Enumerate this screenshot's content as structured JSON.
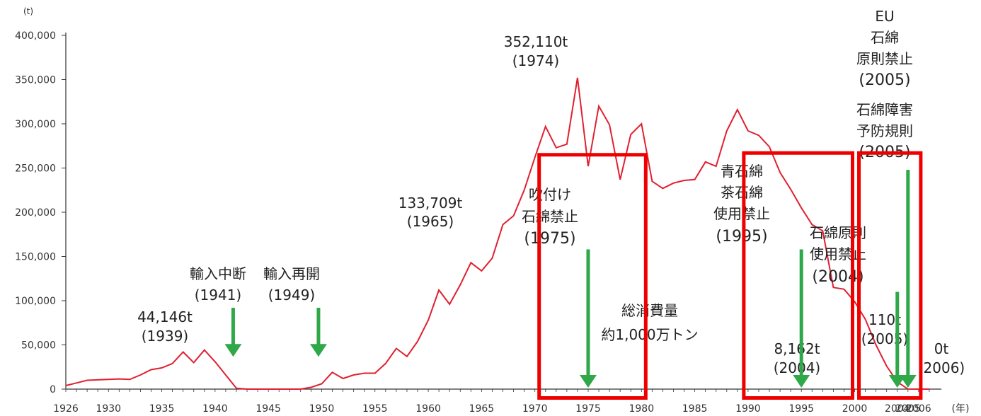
{
  "colors": {
    "line": "#e02030",
    "arrow": "#2fa84a",
    "box": "#ee0000",
    "axis": "#333333"
  },
  "chart_data": {
    "type": "line",
    "title": "",
    "xlabel": "(年)",
    "ylabel": "(t)",
    "xlim": [
      1926,
      2008
    ],
    "ylim": [
      0,
      400000
    ],
    "grid": false,
    "xticks": [
      {
        "value": 1926,
        "label": "1926"
      },
      {
        "value": 1930,
        "label": "1930"
      },
      {
        "value": 1935,
        "label": "1935"
      },
      {
        "value": 1940,
        "label": "1940"
      },
      {
        "value": 1945,
        "label": "1945"
      },
      {
        "value": 1950,
        "label": "1950"
      },
      {
        "value": 1955,
        "label": "1955"
      },
      {
        "value": 1960,
        "label": "1960"
      },
      {
        "value": 1965,
        "label": "1965"
      },
      {
        "value": 1970,
        "label": "1970"
      },
      {
        "value": 1975,
        "label": "1975"
      },
      {
        "value": 1980,
        "label": "1980"
      },
      {
        "value": 1985,
        "label": "1985"
      },
      {
        "value": 1990,
        "label": "1990"
      },
      {
        "value": 1995,
        "label": "1995"
      },
      {
        "value": 2000,
        "label": "2000"
      },
      {
        "value": 2004,
        "label": "2004"
      },
      {
        "value": 2005,
        "label": "2005"
      },
      {
        "value": 2006,
        "label": "2006"
      }
    ],
    "yticks": [
      {
        "value": 0,
        "label": "0"
      },
      {
        "value": 50000,
        "label": "50,000"
      },
      {
        "value": 100000,
        "label": "100,000"
      },
      {
        "value": 150000,
        "label": "150,000"
      },
      {
        "value": 200000,
        "label": "200,000"
      },
      {
        "value": 250000,
        "label": "250,000"
      },
      {
        "value": 300000,
        "label": "300,000"
      },
      {
        "value": 350000,
        "label": "350,000"
      },
      {
        "value": 400000,
        "label": "400,000"
      }
    ],
    "series": [
      {
        "points": [
          [
            1926,
            4000
          ],
          [
            1927,
            7000
          ],
          [
            1928,
            10000
          ],
          [
            1929,
            10500
          ],
          [
            1930,
            11000
          ],
          [
            1931,
            11500
          ],
          [
            1932,
            11000
          ],
          [
            1933,
            16000
          ],
          [
            1934,
            22000
          ],
          [
            1935,
            24000
          ],
          [
            1936,
            29000
          ],
          [
            1937,
            42000
          ],
          [
            1938,
            30000
          ],
          [
            1939,
            44146
          ],
          [
            1940,
            31000
          ],
          [
            1941,
            16000
          ],
          [
            1942,
            1000
          ],
          [
            1943,
            0
          ],
          [
            1948,
            0
          ],
          [
            1949,
            2000
          ],
          [
            1950,
            6000
          ],
          [
            1951,
            19000
          ],
          [
            1952,
            12000
          ],
          [
            1953,
            16000
          ],
          [
            1954,
            18000
          ],
          [
            1955,
            18000
          ],
          [
            1956,
            29000
          ],
          [
            1957,
            46000
          ],
          [
            1958,
            37000
          ],
          [
            1959,
            54000
          ],
          [
            1960,
            78000
          ],
          [
            1961,
            112000
          ],
          [
            1962,
            96000
          ],
          [
            1963,
            118000
          ],
          [
            1964,
            143000
          ],
          [
            1965,
            133709
          ],
          [
            1966,
            148000
          ],
          [
            1967,
            186000
          ],
          [
            1968,
            196000
          ],
          [
            1969,
            225000
          ],
          [
            1970,
            262000
          ],
          [
            1971,
            297000
          ],
          [
            1972,
            273000
          ],
          [
            1973,
            277000
          ],
          [
            1974,
            352110
          ],
          [
            1975,
            252000
          ],
          [
            1976,
            320000
          ],
          [
            1977,
            299000
          ],
          [
            1978,
            237000
          ],
          [
            1979,
            288000
          ],
          [
            1980,
            300000
          ],
          [
            1981,
            235000
          ],
          [
            1982,
            227000
          ],
          [
            1983,
            233000
          ],
          [
            1984,
            236000
          ],
          [
            1985,
            237000
          ],
          [
            1986,
            257000
          ],
          [
            1987,
            252000
          ],
          [
            1988,
            292000
          ],
          [
            1989,
            316000
          ],
          [
            1990,
            292000
          ],
          [
            1991,
            287000
          ],
          [
            1992,
            274000
          ],
          [
            1993,
            245000
          ],
          [
            1994,
            226000
          ],
          [
            1995,
            205000
          ],
          [
            1996,
            186000
          ],
          [
            1997,
            179000
          ],
          [
            1998,
            115000
          ],
          [
            1999,
            113000
          ],
          [
            2000,
            99000
          ],
          [
            2001,
            79000
          ],
          [
            2002,
            50000
          ],
          [
            2003,
            26000
          ],
          [
            2004,
            8162
          ],
          [
            2005,
            110
          ],
          [
            2006,
            0
          ],
          [
            2007,
            0
          ]
        ]
      }
    ],
    "annotations": {
      "peak": {
        "value": "352,110t",
        "year": "(1974)"
      },
      "y1965": {
        "value": "133,709t",
        "year": "(1965)"
      },
      "y1939": {
        "value": "44,146t",
        "year": "(1939)"
      },
      "y2004": {
        "value": "8,162t",
        "year": "(2004)"
      },
      "y2005": {
        "value": "110t",
        "year": "(2005)"
      },
      "y2006": {
        "value": "0t",
        "year": "(2006)"
      },
      "import_stop": {
        "line1": "輸入中断",
        "line2": "(1941)"
      },
      "import_resume": {
        "line1": "輸入再開",
        "line2": "(1949)"
      },
      "spray_ban": {
        "line1": "吹付け",
        "line2": "石綿禁止",
        "line3": "(1975)"
      },
      "blue_brown_ban": {
        "line1": "青石綿",
        "line2": "茶石綿",
        "line3": "使用禁止",
        "line4": "(1995)"
      },
      "principle_ban": {
        "line1": "石綿原則",
        "line2": "使用禁止",
        "line3": "(2004)"
      },
      "eu_ban": {
        "line1": "EU",
        "line2": "石綿",
        "line3": "原則禁止",
        "line4": "(2005)"
      },
      "prevention_rule": {
        "line1": "石綿障害",
        "line2": "予防規則",
        "line3": "(2005)"
      },
      "total": {
        "line1": "総消費量",
        "line2": "約1,000万トン"
      }
    }
  }
}
